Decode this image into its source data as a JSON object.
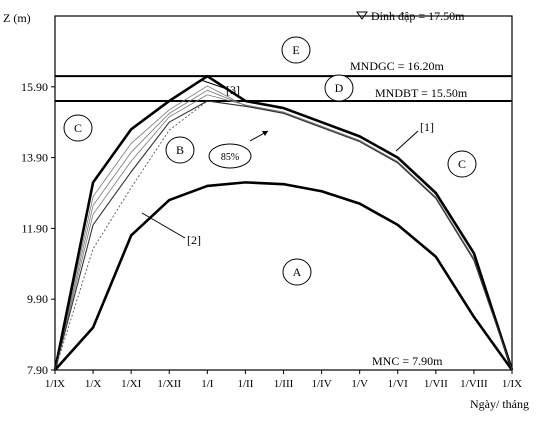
{
  "chart_data": {
    "type": "line",
    "ylabel": "Z (m)",
    "xlabel": "Ngày/ tháng",
    "categories": [
      "1/IX",
      "1/X",
      "1/XI",
      "1/XII",
      "1/I",
      "1/II",
      "1/III",
      "1/IV",
      "1/V",
      "1/VI",
      "1/VII",
      "1/VIII",
      "1/IX"
    ],
    "yticks": [
      "7.90",
      "9.90",
      "11.90",
      "13.90",
      "15.90"
    ],
    "ylim": [
      7.9,
      17.9
    ],
    "grid": false,
    "dam_crest": {
      "label": "Đỉnh đập = 17.50m",
      "value": 17.5
    },
    "reference_lines": [
      {
        "label": "MNDGC = 16.20m",
        "value": 16.2
      },
      {
        "label": "MNDBT = 15.50m",
        "value": 15.5
      },
      {
        "label": "MNC = 7.90m",
        "value": 7.9
      }
    ],
    "zones": [
      "E",
      "D",
      "C",
      "B",
      "A",
      "C"
    ],
    "annotations": [
      "[1]",
      "[2]",
      "[3]",
      "85%"
    ],
    "series": [
      {
        "name": "[1]",
        "values": [
          7.9,
          13.2,
          14.7,
          15.5,
          16.2,
          15.5,
          15.3,
          14.9,
          14.5,
          13.9,
          12.9,
          11.2,
          7.9
        ]
      },
      {
        "name": "[2]",
        "values": [
          7.9,
          9.1,
          11.7,
          12.7,
          13.1,
          13.2,
          13.15,
          12.95,
          12.6,
          12.0,
          11.1,
          9.4,
          7.9
        ]
      },
      {
        "name": "[3]",
        "values": [
          7.9,
          12.0,
          13.5,
          14.9,
          15.5,
          15.35,
          15.15,
          14.75,
          14.35,
          13.75,
          12.75,
          11.0,
          7.9
        ]
      }
    ]
  }
}
